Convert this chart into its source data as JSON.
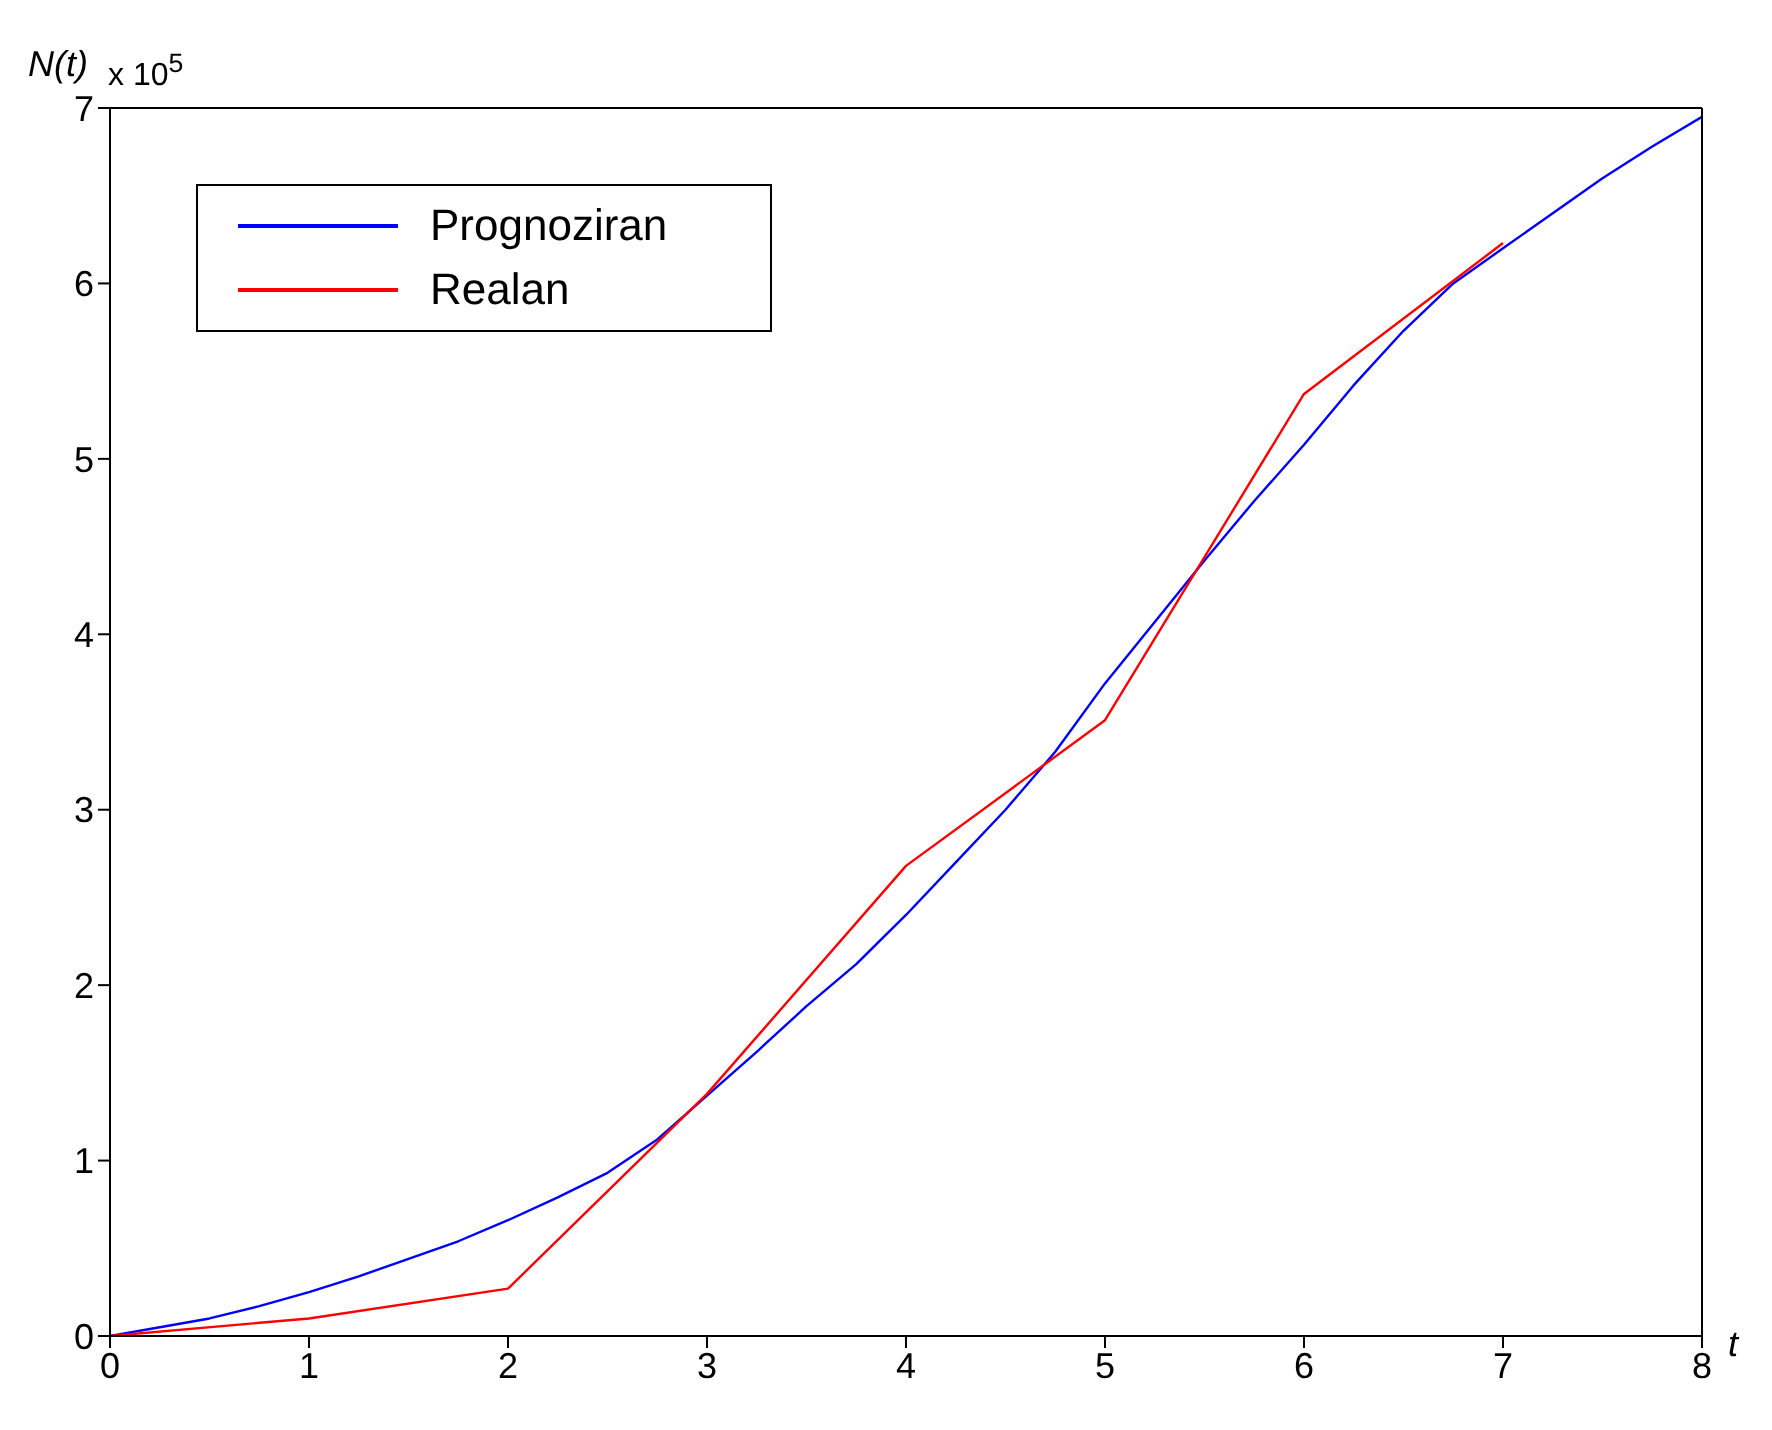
{
  "chart_data": {
    "type": "line",
    "xlabel": "t",
    "ylabel": "N(t)",
    "annotations": [
      "x 10$^{5}$"
    ],
    "xlim": [
      0,
      8
    ],
    "xticks": [
      0,
      1,
      2,
      3,
      4,
      5,
      6,
      7,
      8
    ],
    "ylim": [
      0,
      7
    ],
    "yticks": [
      0,
      1,
      2,
      3,
      4,
      5,
      6,
      7
    ],
    "grid": false,
    "legend": "top left",
    "marker": "none",
    "line_style": "solid",
    "series": [
      {
        "name": "Prognoziran",
        "color": "#0000ff",
        "x": [
          0,
          0.25,
          0.5,
          0.75,
          1,
          1.25,
          1.5,
          1.75,
          2,
          2.25,
          2.5,
          2.75,
          3,
          3.25,
          3.5,
          3.75,
          4,
          4.25,
          4.5,
          4.75,
          5,
          5.25,
          5.5,
          5.75,
          6,
          6.25,
          6.5,
          6.75,
          7,
          7.25,
          7.5,
          7.75,
          8
        ],
        "values": [
          0,
          0.05,
          0.1,
          0.17,
          0.25,
          0.34,
          0.44,
          0.54,
          0.66,
          0.79,
          0.93,
          1.12,
          1.37,
          1.62,
          1.88,
          2.12,
          2.4,
          2.7,
          3.0,
          3.33,
          3.72,
          4.07,
          4.42,
          4.76,
          5.08,
          5.42,
          5.73,
          6.0,
          6.2,
          6.4,
          6.6,
          6.78,
          6.95
        ]
      },
      {
        "name": "Realan",
        "color": "#ff0000",
        "x": [
          0,
          1,
          2,
          3,
          4,
          5,
          6,
          7
        ],
        "values": [
          0,
          0.1,
          0.27,
          1.38,
          2.68,
          3.51,
          5.37,
          6.23
        ]
      }
    ]
  }
}
